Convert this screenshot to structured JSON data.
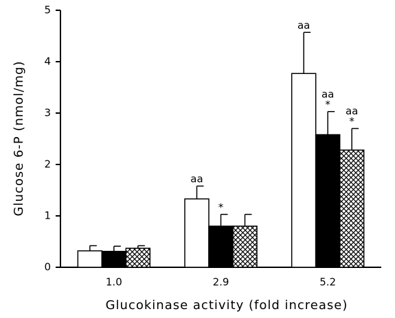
{
  "chart_data": {
    "type": "bar",
    "x_label": "Glucokinase activity (fold increase)",
    "y_label": "Glucose 6-P (nmol/mg)",
    "categories": [
      "1.0",
      "2.9",
      "5.2"
    ],
    "series": [
      {
        "color": "#ffffff",
        "values": [
          0.32,
          1.33,
          3.77
        ],
        "errors": [
          0.1,
          0.25,
          0.8
        ],
        "annotations": [
          null,
          [
            "aa"
          ],
          [
            "aa"
          ]
        ]
      },
      {
        "color": "#000000",
        "values": [
          0.31,
          0.8,
          2.58
        ],
        "errors": [
          0.1,
          0.23,
          0.45
        ],
        "annotations": [
          null,
          [
            "*"
          ],
          [
            "aa",
            "*"
          ]
        ]
      },
      {
        "color": "#000000",
        "pattern": "crosshatch",
        "values": [
          0.37,
          0.8,
          2.28
        ],
        "errors": [
          0.05,
          0.23,
          0.42
        ],
        "annotations": [
          null,
          null,
          [
            "aa",
            "*"
          ]
        ]
      }
    ],
    "ylim": [
      0,
      5
    ],
    "yticks": [
      0,
      1,
      2,
      3,
      4,
      5
    ]
  }
}
